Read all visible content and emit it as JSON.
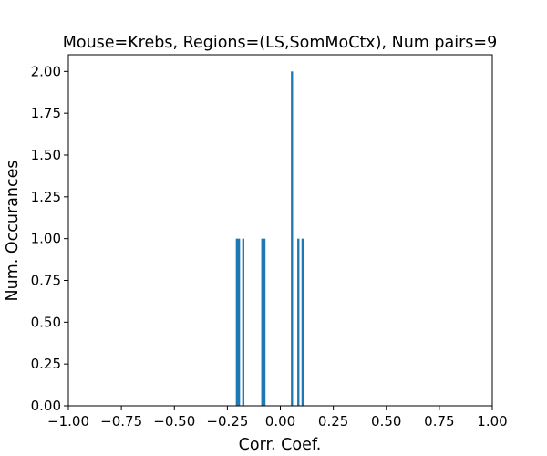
{
  "chart_data": {
    "type": "bar",
    "title": "Mouse=Krebs, Regions=(LS,SomMoCtx), Num pairs=9",
    "xlabel": "Corr. Coef.",
    "ylabel": "Num. Occurances",
    "xlim": [
      -1.0,
      1.0
    ],
    "ylim": [
      0.0,
      2.1
    ],
    "bar_color": "#1f77b4",
    "grid": false,
    "bin_width": 0.01,
    "bins": [
      {
        "x": -0.21,
        "value": 1
      },
      {
        "x": -0.2,
        "value": 1
      },
      {
        "x": -0.18,
        "value": 1
      },
      {
        "x": -0.09,
        "value": 1
      },
      {
        "x": -0.08,
        "value": 1
      },
      {
        "x": 0.05,
        "value": 2
      },
      {
        "x": 0.08,
        "value": 1
      },
      {
        "x": 0.1,
        "value": 1
      }
    ],
    "x_ticks": [
      {
        "value": -1.0,
        "label": "−1.00"
      },
      {
        "value": -0.75,
        "label": "−0.75"
      },
      {
        "value": -0.5,
        "label": "−0.50"
      },
      {
        "value": -0.25,
        "label": "−0.25"
      },
      {
        "value": 0.0,
        "label": "0.00"
      },
      {
        "value": 0.25,
        "label": "0.25"
      },
      {
        "value": 0.5,
        "label": "0.50"
      },
      {
        "value": 0.75,
        "label": "0.75"
      },
      {
        "value": 1.0,
        "label": "1.00"
      }
    ],
    "y_ticks": [
      {
        "value": 0.0,
        "label": "0.00"
      },
      {
        "value": 0.25,
        "label": "0.25"
      },
      {
        "value": 0.5,
        "label": "0.50"
      },
      {
        "value": 0.75,
        "label": "0.75"
      },
      {
        "value": 1.0,
        "label": "1.00"
      },
      {
        "value": 1.25,
        "label": "1.25"
      },
      {
        "value": 1.5,
        "label": "1.50"
      },
      {
        "value": 1.75,
        "label": "1.75"
      },
      {
        "value": 2.0,
        "label": "2.00"
      }
    ]
  }
}
